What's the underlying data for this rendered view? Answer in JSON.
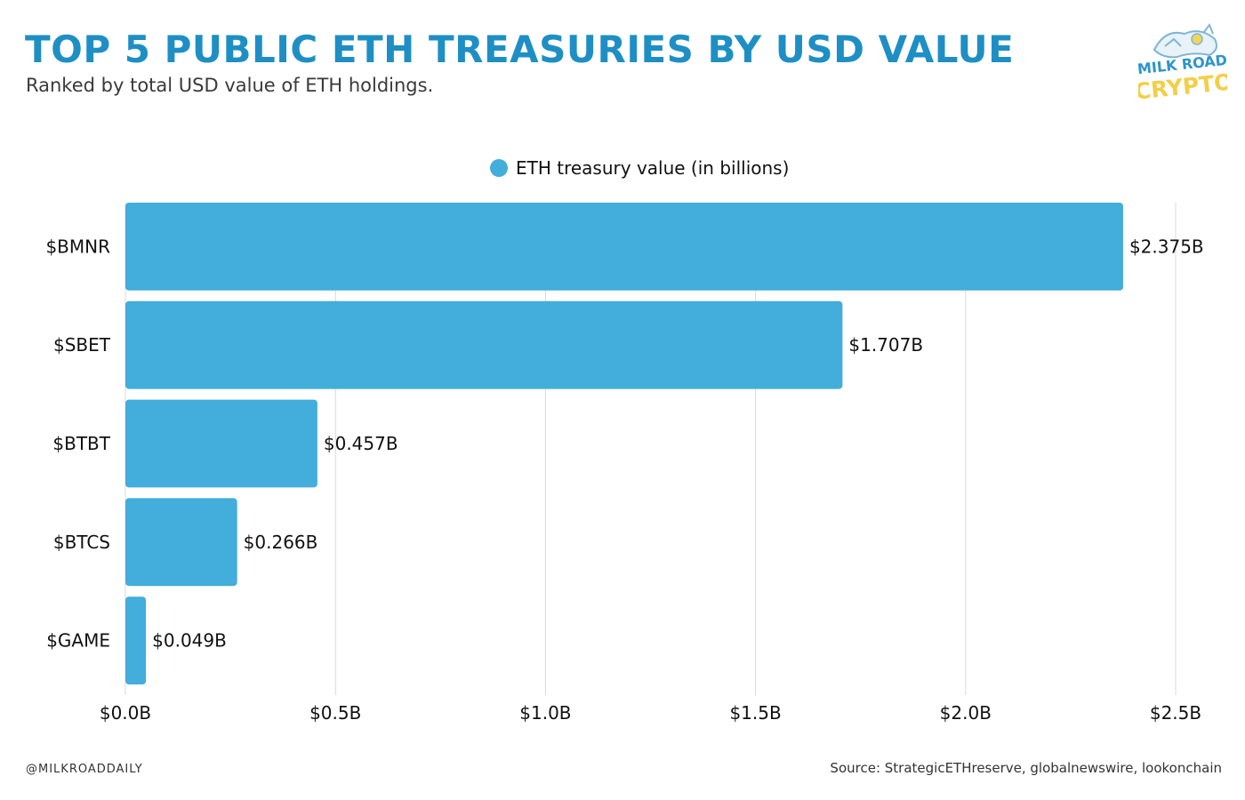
{
  "header": {
    "title": "TOP 5 PUBLIC ETH TREASURIES BY USD VALUE",
    "subtitle": "Ranked by total USD value of ETH holdings."
  },
  "logo": {
    "line1": "MILK ROAD",
    "line2": "CRYPTO",
    "icon": "milk-road-mascot-logo"
  },
  "footer": {
    "handle": "@MILKROADDAILY",
    "source": "Source: StrategicETHreserve, globalnewswire, lookonchain"
  },
  "colors": {
    "bar": "#43addc",
    "title": "#1e8fc4",
    "grid": "#d9d9d9"
  },
  "chart_data": {
    "type": "bar",
    "orientation": "horizontal",
    "categories": [
      "$BMNR",
      "$SBET",
      "$BTBT",
      "$BTCS",
      "$GAME"
    ],
    "series": [
      {
        "name": "ETH treasury value (in billions)",
        "values": [
          2.375,
          1.707,
          0.457,
          0.266,
          0.049
        ]
      }
    ],
    "data_labels": [
      "$2.375B",
      "$1.707B",
      "$0.457B",
      "$0.266B",
      "$0.049B"
    ],
    "x_ticks": [
      0,
      0.5,
      1.0,
      1.5,
      2.0,
      2.5
    ],
    "x_tick_labels": [
      "$0.0B",
      "$0.5B",
      "$1.0B",
      "$1.5B",
      "$2.0B",
      "$2.5B"
    ],
    "xlim": [
      0,
      2.5
    ],
    "grid": "vertical",
    "legend": "top-center"
  }
}
